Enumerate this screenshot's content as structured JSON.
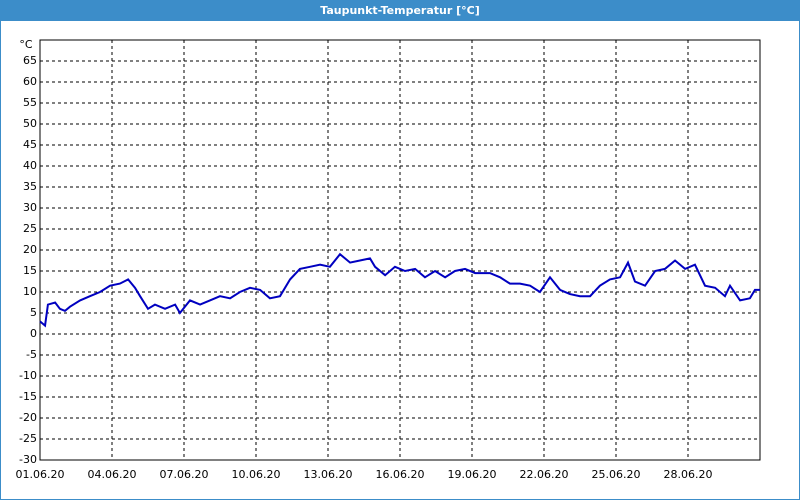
{
  "chart_data": {
    "type": "line",
    "title": "Taupunkt-Temperatur [°C]",
    "y_label": "°C",
    "x": [
      0,
      0.21,
      0.33,
      0.63,
      0.83,
      1.04,
      1.25,
      1.67,
      2.08,
      2.5,
      2.92,
      3.33,
      3.67,
      3.96,
      4.17,
      4.5,
      4.79,
      5.21,
      5.63,
      5.83,
      6.25,
      6.67,
      7.08,
      7.5,
      7.92,
      8.33,
      8.75,
      9.17,
      9.58,
      10,
      10.42,
      10.83,
      11.25,
      11.67,
      12.08,
      12.5,
      12.92,
      13.33,
      13.75,
      13.96,
      14.38,
      14.79,
      15.21,
      15.63,
      16.04,
      16.46,
      16.88,
      17.29,
      17.71,
      18.13,
      18.75,
      19.17,
      19.58,
      20,
      20.42,
      20.83,
      21.25,
      21.67,
      22.08,
      22.5,
      22.92,
      23.33,
      23.75,
      24.17,
      24.5,
      24.79,
      25.21,
      25.63,
      26.04,
      26.46,
      26.88,
      27.29,
      27.71,
      28.13,
      28.54,
      28.75,
      29.17,
      29.58,
      29.79,
      30
    ],
    "series": [
      {
        "name": "Taupunkt",
        "color": "#0000c0",
        "values": [
          3,
          2,
          7,
          7.5,
          6,
          5.5,
          6.5,
          8,
          9,
          10,
          11.5,
          12,
          13,
          11,
          9,
          6,
          7,
          6,
          7,
          5,
          8,
          7,
          8,
          9,
          8.5,
          10,
          11,
          10.5,
          8.5,
          9,
          13,
          15.5,
          16,
          16.5,
          16,
          19,
          17,
          17.5,
          18,
          16,
          14,
          16,
          15,
          15.5,
          13.5,
          15,
          13.5,
          15,
          15.5,
          14.5,
          14.5,
          13.5,
          12,
          12,
          11.5,
          10,
          13.5,
          10.5,
          9.5,
          9,
          9,
          11.5,
          13,
          13.5,
          17,
          12.5,
          11.5,
          15,
          15.5,
          17.5,
          15.5,
          16.5,
          11.5,
          11,
          9,
          11.5,
          8,
          8.5,
          10.5,
          10.5
        ]
      }
    ],
    "xlim": [
      0,
      30
    ],
    "xticks": [
      {
        "value": 0,
        "label": "01.06.20"
      },
      {
        "value": 3,
        "label": "04.06.20"
      },
      {
        "value": 6,
        "label": "07.06.20"
      },
      {
        "value": 9,
        "label": "10.06.20"
      },
      {
        "value": 12,
        "label": "13.06.20"
      },
      {
        "value": 15,
        "label": "16.06.20"
      },
      {
        "value": 18,
        "label": "19.06.20"
      },
      {
        "value": 21,
        "label": "22.06.20"
      },
      {
        "value": 24,
        "label": "25.06.20"
      },
      {
        "value": 27,
        "label": "28.06.20"
      }
    ],
    "ylim": [
      -30,
      70
    ],
    "yticks": [
      -30,
      -25,
      -20,
      -15,
      -10,
      -5,
      0,
      5,
      10,
      15,
      20,
      25,
      30,
      35,
      40,
      45,
      50,
      55,
      60,
      65
    ],
    "grid": true
  }
}
